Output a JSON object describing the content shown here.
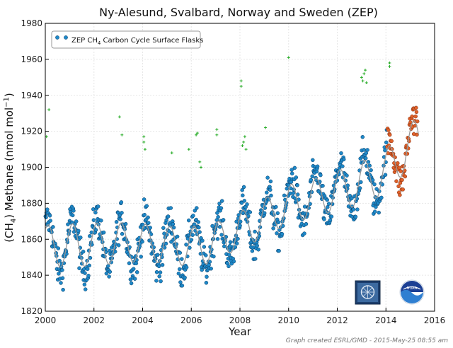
{
  "chart_data": {
    "type": "scatter",
    "title": "Ny-Alesund, Svalbard, Norway and Sweden (ZEP)",
    "xlabel": "Year",
    "ylabel_main": "(CH",
    "ylabel_sub": "4",
    "ylabel_rest": ") Methane (nmol mol",
    "ylabel_sup": "−1",
    "ylabel_end": ")",
    "xlim": [
      2000,
      2016
    ],
    "ylim": [
      1820,
      1980
    ],
    "x_ticks": [
      "2000",
      "2002",
      "2004",
      "2006",
      "2008",
      "2010",
      "2012",
      "2014",
      "2016"
    ],
    "y_ticks": [
      "1820",
      "1840",
      "1860",
      "1880",
      "1900",
      "1920",
      "1940",
      "1960",
      "1980"
    ],
    "grid": true,
    "legend": {
      "placement": "top-left",
      "label_pre": "ZEP CH",
      "label_sub": "4",
      "label_post": " Carbon Cycle Surface Flasks"
    },
    "credit": "Graph created ESRL/GMD - 2015-May-25 08:55 am",
    "colors": {
      "flask": "#1e88c8",
      "flask_edge": "#0a3c64",
      "preliminary": "#e0622a",
      "preliminary_edge": "#7a2a10",
      "flagged": "#22aa22",
      "trend": "#999999"
    },
    "trend_knots": [
      [
        2000.0,
        1857
      ],
      [
        2000.5,
        1856
      ],
      [
        2001.0,
        1856.5
      ],
      [
        2001.5,
        1857
      ],
      [
        2002.0,
        1857
      ],
      [
        2002.5,
        1857.5
      ],
      [
        2003.0,
        1858
      ],
      [
        2003.5,
        1858
      ],
      [
        2004.0,
        1858
      ],
      [
        2004.5,
        1857.5
      ],
      [
        2005.0,
        1857
      ],
      [
        2005.5,
        1856.5
      ],
      [
        2006.0,
        1856
      ],
      [
        2006.5,
        1856.5
      ],
      [
        2007.0,
        1859
      ],
      [
        2007.5,
        1862
      ],
      [
        2008.0,
        1865
      ],
      [
        2008.5,
        1868
      ],
      [
        2009.0,
        1872
      ],
      [
        2009.5,
        1876
      ],
      [
        2010.0,
        1879
      ],
      [
        2010.5,
        1881
      ],
      [
        2011.0,
        1883
      ],
      [
        2011.5,
        1885
      ],
      [
        2012.0,
        1887
      ],
      [
        2012.5,
        1889
      ],
      [
        2013.0,
        1891
      ],
      [
        2013.5,
        1894
      ],
      [
        2014.0,
        1898
      ],
      [
        2014.5,
        1905
      ],
      [
        2015.0,
        1912
      ],
      [
        2015.3,
        1916
      ]
    ],
    "season_amp": [
      [
        2000,
        28
      ],
      [
        2001,
        30
      ],
      [
        2002,
        30
      ],
      [
        2003,
        28
      ],
      [
        2004,
        26
      ],
      [
        2005,
        26
      ],
      [
        2006,
        28
      ],
      [
        2007,
        26
      ],
      [
        2008,
        26
      ],
      [
        2009,
        26
      ],
      [
        2010,
        28
      ],
      [
        2011,
        26
      ],
      [
        2012,
        28
      ],
      [
        2013,
        30
      ],
      [
        2014,
        30
      ],
      [
        2015,
        30
      ]
    ],
    "preliminary_from": 2014.05,
    "flagged": [
      [
        2000.05,
        1917
      ],
      [
        2000.15,
        1932
      ],
      [
        2003.05,
        1928
      ],
      [
        2003.15,
        1918
      ],
      [
        2004.05,
        1917
      ],
      [
        2004.05,
        1914
      ],
      [
        2004.1,
        1910
      ],
      [
        2005.2,
        1908
      ],
      [
        2005.9,
        1910
      ],
      [
        2006.2,
        1918
      ],
      [
        2006.25,
        1919
      ],
      [
        2006.35,
        1903
      ],
      [
        2006.4,
        1900
      ],
      [
        2007.05,
        1921
      ],
      [
        2007.05,
        1918
      ],
      [
        2008.05,
        1948
      ],
      [
        2008.05,
        1945
      ],
      [
        2008.1,
        1912
      ],
      [
        2008.15,
        1914
      ],
      [
        2008.2,
        1917
      ],
      [
        2008.25,
        1910
      ],
      [
        2009.05,
        1922
      ],
      [
        2010.0,
        1961
      ],
      [
        2013.0,
        1950
      ],
      [
        2013.05,
        1948
      ],
      [
        2013.1,
        1952
      ],
      [
        2013.15,
        1954
      ],
      [
        2013.2,
        1947
      ],
      [
        2014.15,
        1958
      ],
      [
        2014.15,
        1956
      ]
    ]
  }
}
